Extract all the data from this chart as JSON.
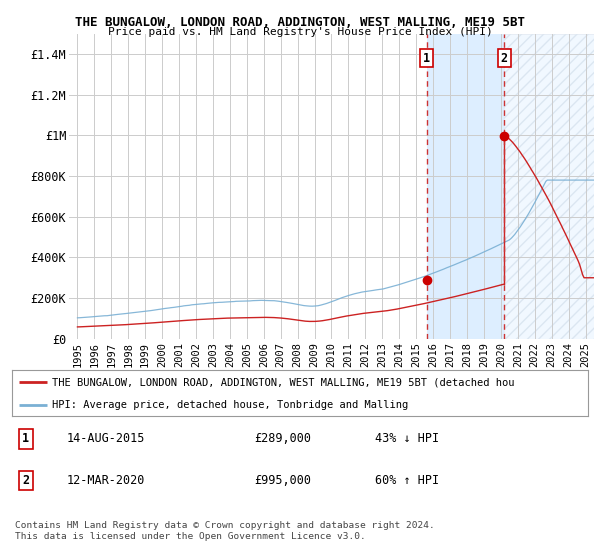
{
  "title1": "THE BUNGALOW, LONDON ROAD, ADDINGTON, WEST MALLING, ME19 5BT",
  "title2": "Price paid vs. HM Land Registry's House Price Index (HPI)",
  "ylim": [
    0,
    1500000
  ],
  "yticks": [
    0,
    200000,
    400000,
    600000,
    800000,
    1000000,
    1200000,
    1400000
  ],
  "ytick_labels": [
    "£0",
    "£200K",
    "£400K",
    "£600K",
    "£800K",
    "£1M",
    "£1.2M",
    "£1.4M"
  ],
  "sale1_date": 2015.62,
  "sale1_price": 289000,
  "sale2_date": 2020.19,
  "sale2_price": 995000,
  "shade_color": "#ddeeff",
  "vline_color": "#cc3333",
  "dot_color": "#cc0000",
  "hpi_color": "#7ab0d4",
  "price_color": "#cc2222",
  "legend_line1": "THE BUNGALOW, LONDON ROAD, ADDINGTON, WEST MALLING, ME19 5BT (detached hou",
  "legend_line2": "HPI: Average price, detached house, Tonbridge and Malling",
  "footnote1": "Contains HM Land Registry data © Crown copyright and database right 2024.",
  "footnote2": "This data is licensed under the Open Government Licence v3.0.",
  "bg_color": "#ffffff",
  "grid_color": "#cccccc"
}
